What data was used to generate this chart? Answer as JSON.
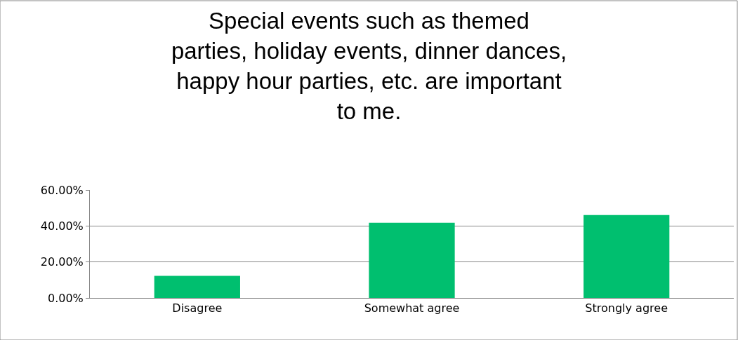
{
  "chart_data": {
    "type": "bar",
    "title": "Special events such as themed\nparties, holiday events, dinner dances,\nhappy hour parties, etc. are important\nto me.",
    "categories": [
      "Disagree",
      "Somewhat agree",
      "Strongly agree"
    ],
    "values": [
      12.3,
      41.8,
      46.1
    ],
    "color": "#00bf6f",
    "ylim": [
      0,
      60
    ],
    "yticks": [
      {
        "value": 0,
        "label": "0.00%"
      },
      {
        "value": 20,
        "label": "20.00%"
      },
      {
        "value": 40,
        "label": "40.00%"
      },
      {
        "value": 60,
        "label": "60.00%"
      }
    ],
    "grid": "y"
  }
}
